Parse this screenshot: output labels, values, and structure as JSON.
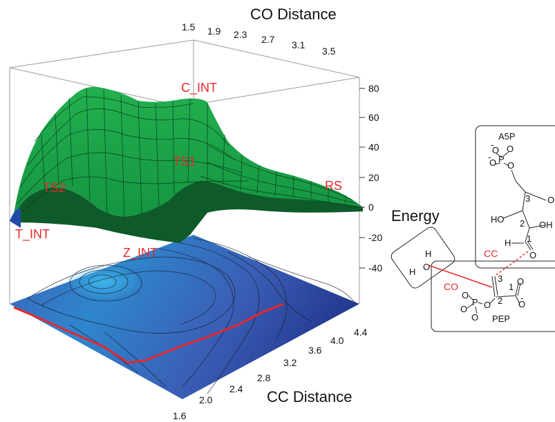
{
  "chart_data": {
    "type": "surface",
    "title": "",
    "xlabel": "CC Distance",
    "ylabel": "CO Distance",
    "zlabel": "Energy",
    "xlim": [
      1.6,
      4.4
    ],
    "ylim": [
      1.5,
      3.7
    ],
    "zlim": [
      -50,
      90
    ],
    "x_ticks": [
      "1.6",
      "2.0",
      "2.4",
      "2.8",
      "3.2",
      "3.6",
      "4.0",
      "4.4"
    ],
    "y_ticks": [
      "1.5",
      "1.9",
      "2.3",
      "2.7",
      "3.1",
      "3.5"
    ],
    "z_ticks": [
      "-40",
      "-20",
      "0",
      "20",
      "40",
      "60",
      "80"
    ],
    "states": [
      {
        "name": "C_INT",
        "cc": 3.6,
        "co": 1.6,
        "energy": 80
      },
      {
        "name": "TS1",
        "cc": 3.0,
        "co": 2.4,
        "energy": 40
      },
      {
        "name": "TS2",
        "cc": 2.2,
        "co": 1.7,
        "energy": 25
      },
      {
        "name": "RS",
        "cc": 4.2,
        "co": 3.6,
        "energy": 0
      },
      {
        "name": "T_INT",
        "cc": 1.6,
        "co": 1.5,
        "energy": -5
      },
      {
        "name": "Z_INT",
        "cc": 1.8,
        "co": 3.0,
        "energy": -10
      }
    ],
    "reaction_path": [
      {
        "cc": 1.6,
        "co": 1.5
      },
      {
        "cc": 1.9,
        "co": 1.9
      },
      {
        "cc": 2.1,
        "co": 2.3
      },
      {
        "cc": 2.2,
        "co": 2.6
      },
      {
        "cc": 2.8,
        "co": 2.8
      },
      {
        "cc": 3.4,
        "co": 3.1
      },
      {
        "cc": 3.9,
        "co": 3.4
      },
      {
        "cc": 4.2,
        "co": 3.6
      }
    ],
    "grid": true,
    "colors": {
      "surface": "#20a84a",
      "contour_high": "#35a8e0",
      "contour_low": "#2b3f9e",
      "path": "#e8262c",
      "labels": "#e8262c"
    }
  },
  "scheme": {
    "energy_label": "Energy",
    "a5p": {
      "title": "A5P",
      "oh": "OH",
      "ho": "HO",
      "oh2": "OH",
      "c3": "3",
      "c2": "2",
      "c1": "1",
      "h": "H",
      "o": "O",
      "p": "P",
      "o_minus": "O",
      "minus": "-",
      "o_top": "O",
      "o_left": "O",
      "o_link": "O",
      "o_bottom": "O"
    },
    "water": {
      "h1": "H",
      "o": "O",
      "h2": "H"
    },
    "pep": {
      "title": "PEP",
      "c3": "3",
      "c2": "2",
      "c1": "1",
      "o1": "O",
      "o2": "O",
      "minus": "-",
      "o_link": "O",
      "p": "P",
      "o3": "O",
      "o4": "O",
      "o5": "O"
    },
    "cc_label": "CC",
    "co_label": "CO"
  }
}
